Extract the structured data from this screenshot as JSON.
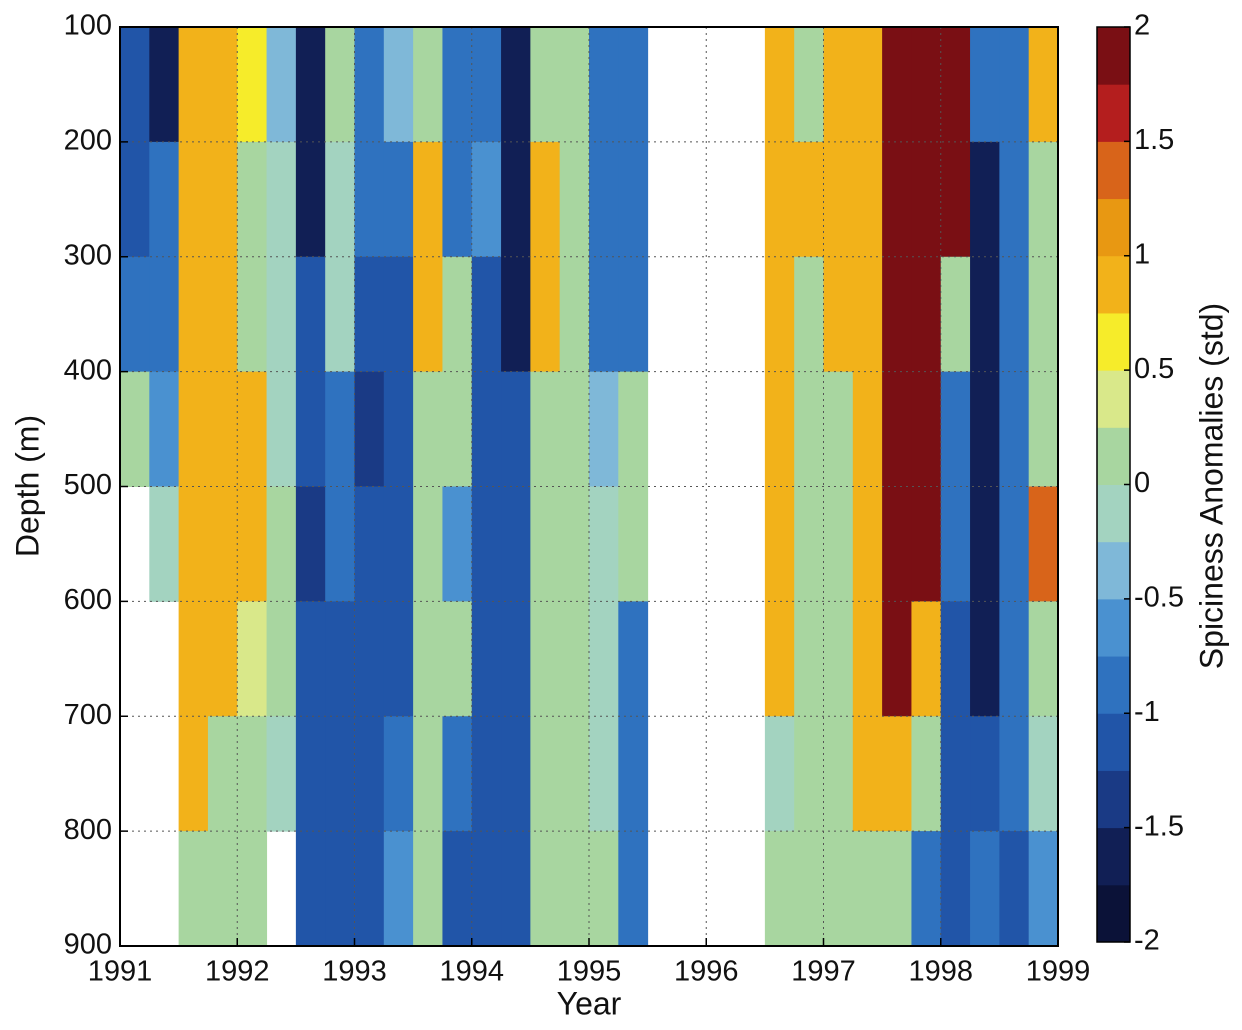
{
  "chart_data": {
    "type": "heatmap",
    "xlabel": "Year",
    "ylabel": "Depth (m)",
    "colorbar_label": "Spiciness Anomalies (std)",
    "x": [
      1991.125,
      1991.375,
      1991.625,
      1991.875,
      1992.125,
      1992.375,
      1992.625,
      1992.875,
      1993.125,
      1993.375,
      1993.625,
      1993.875,
      1994.125,
      1994.375,
      1994.625,
      1994.875,
      1995.125,
      1995.375,
      1995.625,
      1995.875,
      1996.125,
      1996.375,
      1996.625,
      1996.875,
      1997.125,
      1997.375,
      1997.625,
      1997.875,
      1998.125,
      1998.375,
      1998.625,
      1998.875
    ],
    "y": [
      150,
      250,
      350,
      450,
      550,
      650,
      750,
      850
    ],
    "z": [
      [
        -1.1,
        -1.5,
        1,
        1,
        0.6,
        -0.3,
        -1.6,
        0.1,
        -0.9,
        -0.3,
        0.1,
        -0.9,
        -0.9,
        -1.6,
        0.1,
        0.1,
        -0.9,
        -0.9,
        null,
        null,
        null,
        null,
        1,
        0.1,
        1,
        1,
        1.8,
        1.8,
        1.8,
        -0.9,
        -0.9,
        1
      ],
      [
        -1,
        -0.9,
        1,
        1,
        0.1,
        -0.2,
        -1.5,
        0,
        -0.9,
        -0.9,
        0.8,
        -0.9,
        -0.5,
        -1.6,
        0.8,
        0.1,
        -0.9,
        -0.9,
        null,
        null,
        null,
        null,
        1,
        0.8,
        1,
        1,
        1.8,
        1.8,
        1.8,
        -1.5,
        -0.9,
        0.1
      ],
      [
        -0.8,
        -0.8,
        1,
        1,
        0.1,
        0,
        -1.2,
        0,
        -1,
        -1,
        1,
        0.1,
        -1,
        -1.5,
        1,
        0.1,
        -0.9,
        -0.9,
        null,
        null,
        null,
        null,
        1,
        0.1,
        0.8,
        1,
        1.8,
        1.8,
        0.1,
        -1.6,
        -0.9,
        0.1
      ],
      [
        0.1,
        -0.6,
        1,
        1,
        1,
        0,
        -1.2,
        -0.9,
        -1.4,
        -1,
        0.1,
        0.1,
        -1,
        -1,
        0.1,
        0.1,
        -0.3,
        0.1,
        null,
        null,
        null,
        null,
        1,
        0.1,
        0.1,
        1,
        1.8,
        1.8,
        -0.9,
        -1.7,
        -0.9,
        0.1
      ],
      [
        null,
        0,
        1,
        1,
        1,
        0.1,
        -1.3,
        -0.8,
        -1,
        -1,
        0.1,
        -0.5,
        -1,
        -1,
        0.1,
        0.1,
        0,
        0.1,
        null,
        null,
        null,
        null,
        1,
        0.1,
        0.1,
        1,
        1.8,
        1.8,
        -0.9,
        -1.7,
        -0.9,
        1.5
      ],
      [
        null,
        null,
        1,
        0.9,
        0.3,
        0.1,
        -1,
        -1,
        -1,
        -1,
        0.1,
        0.1,
        -1,
        -1,
        0.1,
        0.1,
        0,
        -0.9,
        null,
        null,
        null,
        null,
        1,
        0.1,
        0.1,
        1,
        1.8,
        1,
        -1,
        -1.5,
        -0.9,
        0.1
      ],
      [
        null,
        null,
        0.9,
        0.1,
        0.1,
        0,
        -1,
        -1,
        -1,
        -0.9,
        0.1,
        -0.8,
        -1,
        -1,
        0.1,
        0.1,
        0,
        -0.9,
        null,
        null,
        null,
        null,
        0,
        0.1,
        0.1,
        1,
        1,
        0.1,
        -1,
        -1,
        -0.9,
        0
      ],
      [
        null,
        null,
        0.1,
        0.1,
        0.1,
        null,
        -1,
        -1,
        -1,
        -0.5,
        0.1,
        -1,
        -1,
        -1,
        0.1,
        0.1,
        0.1,
        -0.9,
        null,
        null,
        null,
        null,
        0.1,
        0.1,
        0.1,
        0.1,
        0.1,
        -0.9,
        -1,
        -0.9,
        -1,
        -0.5
      ]
    ],
    "xlim": [
      1991,
      1999
    ],
    "xticks": [
      1991,
      1992,
      1993,
      1994,
      1995,
      1996,
      1997,
      1998,
      1999
    ],
    "ylim": [
      100,
      900
    ],
    "yticks": [
      100,
      200,
      300,
      400,
      500,
      600,
      700,
      800,
      900
    ],
    "y_inverted": true,
    "grid": true,
    "levels": [
      -2,
      -1.75,
      -1.5,
      -1.25,
      -1,
      -0.75,
      -0.5,
      -0.25,
      0,
      0.25,
      0.5,
      0.75,
      1,
      1.25,
      1.5,
      1.75,
      2
    ],
    "colors": [
      "#0b1238",
      "#111f55",
      "#1a3a85",
      "#2155a8",
      "#2f72bf",
      "#4a91d0",
      "#7fb8d8",
      "#a3d3c0",
      "#a8d6a0",
      "#d9e88a",
      "#f6ec2a",
      "#f2b21a",
      "#e89812",
      "#d8641a",
      "#b41e1e",
      "#7a0f14"
    ],
    "zlim": [
      -2,
      2
    ],
    "zticks": [
      -2,
      -1.5,
      -1,
      -0.5,
      0,
      0.5,
      1,
      1.5,
      2
    ]
  }
}
